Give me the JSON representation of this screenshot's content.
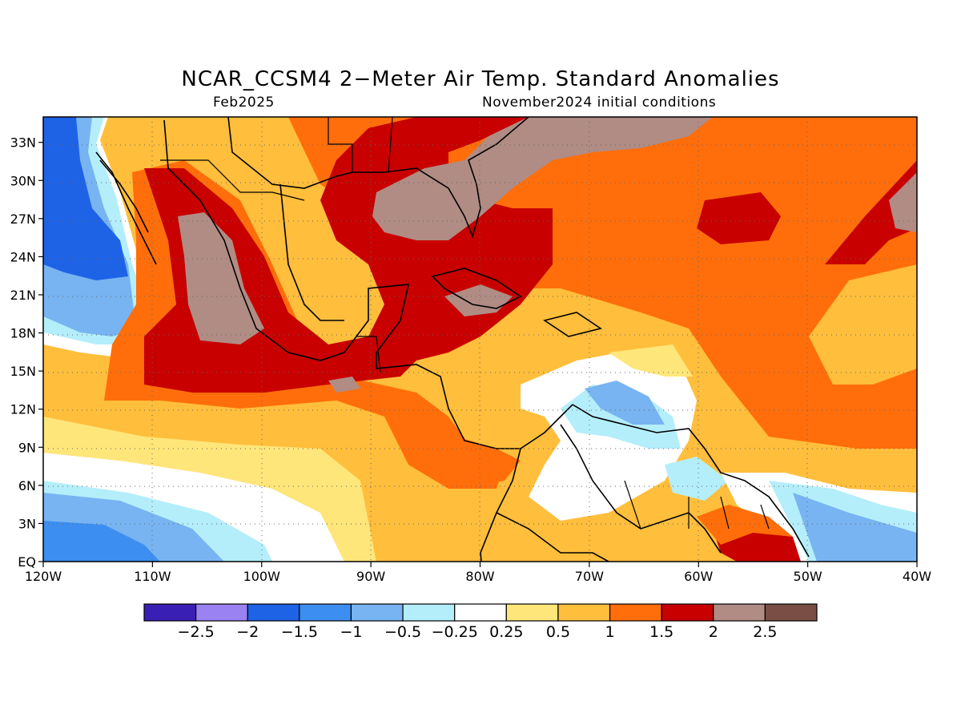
{
  "title": "NCAR_CCSM4 2−Meter Air Temp. Standard Anomalies",
  "subtitle_left": "Feb2025",
  "subtitle_right": "November2024 initial conditions",
  "map": {
    "lon_labels": [
      "120W",
      "110W",
      "100W",
      "90W",
      "80W",
      "70W",
      "60W",
      "50W",
      "40W"
    ],
    "lat_labels": [
      "EQ",
      "3N",
      "6N",
      "9N",
      "12N",
      "15N",
      "18N",
      "21N",
      "24N",
      "27N",
      "30N",
      "33N"
    ]
  },
  "colorbar": {
    "colors": [
      "#3a1fb5",
      "#9b82f2",
      "#1e63e6",
      "#3c8ef0",
      "#78b4f2",
      "#b4eefa",
      "#ffffff",
      "#ffe67a",
      "#ffbe3c",
      "#ff6e0a",
      "#c80000",
      "#b08c84",
      "#7a4e44"
    ],
    "labels": [
      "−2.5",
      "−2",
      "−1.5",
      "−1",
      "−0.5",
      "−0.25",
      "0.25",
      "0.5",
      "1",
      "1.5",
      "2",
      "2.5"
    ]
  }
}
